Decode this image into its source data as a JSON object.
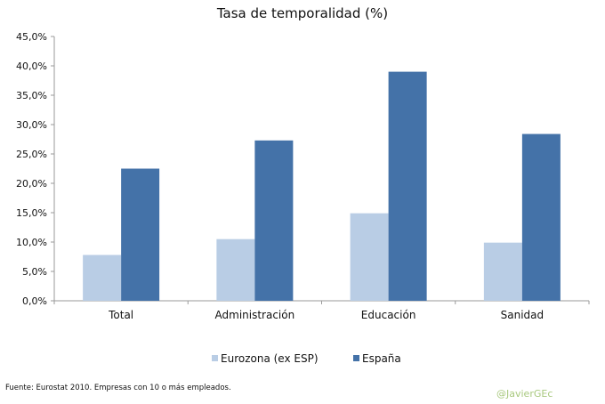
{
  "chart_data": {
    "type": "bar",
    "title": "Tasa de temporalidad (%)",
    "categories": [
      "Total",
      "Administración",
      "Educación",
      "Sanidad"
    ],
    "series": [
      {
        "name": "Eurozona (ex ESP)",
        "color": "#b9cde5",
        "values": [
          7.8,
          10.5,
          14.9,
          9.9
        ]
      },
      {
        "name": "España",
        "color": "#4472a8",
        "values": [
          22.5,
          27.3,
          39.0,
          28.4
        ]
      }
    ],
    "yticks": [
      "0,0%",
      "5,0%",
      "10,0%",
      "15,0%",
      "20,0%",
      "25,0%",
      "30,0%",
      "35,0%",
      "40,0%",
      "45,0%"
    ],
    "ylim": [
      0,
      45
    ],
    "xlabel": "",
    "ylabel": "",
    "legend_position": "bottom"
  },
  "footer": {
    "source": "Fuente: Eurostat 2010. Empresas con 10 o más empleados.",
    "watermark": "@JavierGEc"
  }
}
